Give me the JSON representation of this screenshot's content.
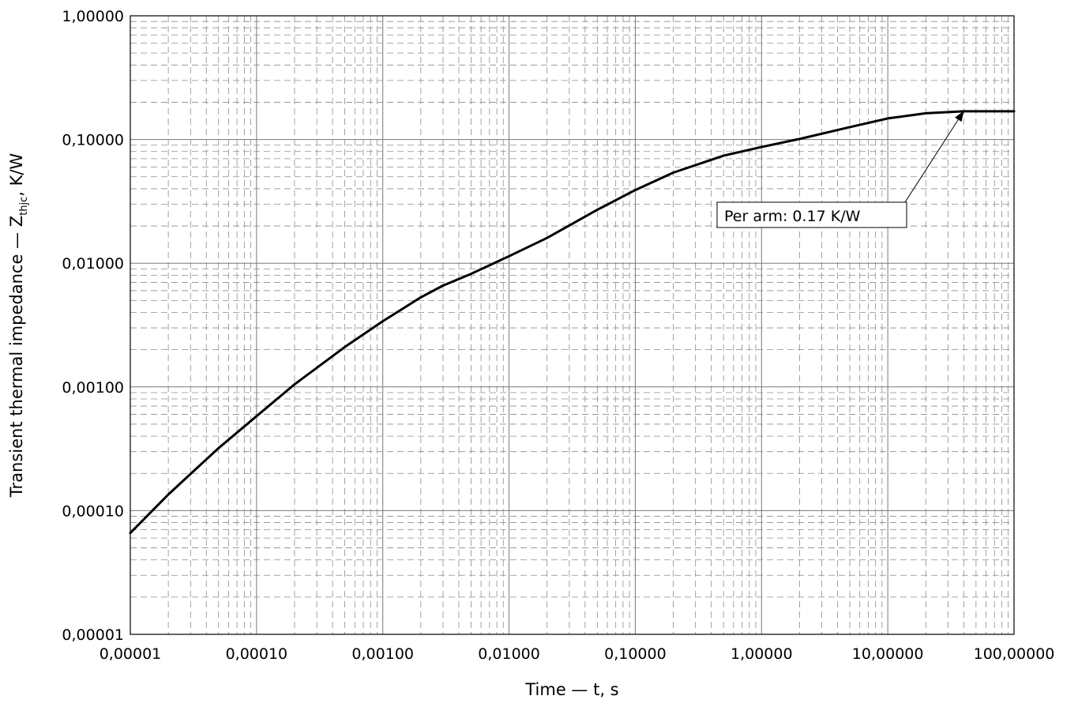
{
  "chart_data": {
    "type": "line",
    "xscale": "log",
    "yscale": "log",
    "xlim": [
      1e-05,
      100
    ],
    "ylim": [
      1e-05,
      1
    ],
    "grid": true,
    "x_tick_labels": [
      "0,00001",
      "0,00010",
      "0,00100",
      "0,01000",
      "0,10000",
      "1,00000",
      "10,00000",
      "100,00000"
    ],
    "y_tick_labels": [
      "0,00001",
      "0,00010",
      "0,00100",
      "0,01000",
      "0,10000",
      "1,00000"
    ],
    "xlabel": "Time — t, s",
    "ylabel": {
      "main": "Transient thermal impedance — Z",
      "subscript": "thjc",
      "suffix": ", K/W"
    },
    "series": [
      {
        "color": "#000000",
        "points": [
          [
            1e-05,
            6.6e-05
          ],
          [
            2e-05,
            0.000135
          ],
          [
            5e-05,
            0.00032
          ],
          [
            0.0001,
            0.00058
          ],
          [
            0.0002,
            0.00105
          ],
          [
            0.0005,
            0.0021
          ],
          [
            0.001,
            0.0034
          ],
          [
            0.002,
            0.0053
          ],
          [
            0.003,
            0.0066
          ],
          [
            0.005,
            0.0082
          ],
          [
            0.01,
            0.0114
          ],
          [
            0.02,
            0.016
          ],
          [
            0.05,
            0.027
          ],
          [
            0.1,
            0.039
          ],
          [
            0.2,
            0.054
          ],
          [
            0.5,
            0.074
          ],
          [
            1,
            0.087
          ],
          [
            2,
            0.101
          ],
          [
            5,
            0.126
          ],
          [
            10,
            0.148
          ],
          [
            20,
            0.163
          ],
          [
            40,
            0.169
          ],
          [
            100,
            0.169
          ]
        ]
      }
    ],
    "annotation": {
      "text": "Per arm: 0.17 K/W",
      "target": [
        40,
        0.17
      ]
    }
  }
}
